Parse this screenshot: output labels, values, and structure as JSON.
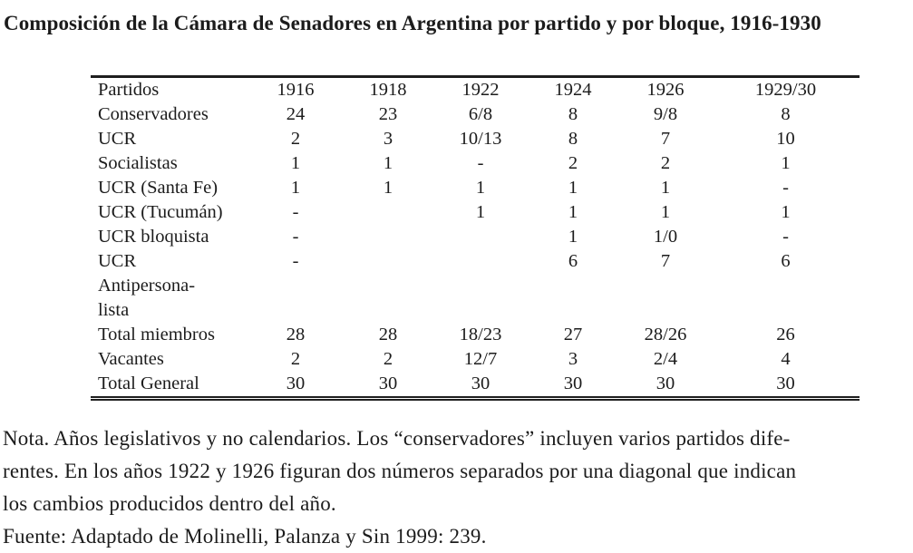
{
  "page": {
    "title": "Composición de la Cámara de Senadores en Argentina por partido y por bloque, 1916-1930"
  },
  "table": {
    "columns": [
      "Partidos",
      "1916",
      "1918",
      "1922",
      "1924",
      "1926",
      "1929/30"
    ],
    "rows": [
      {
        "label": "Conservadores",
        "values": [
          "24",
          "23",
          "6/8",
          "8",
          "9/8",
          "8"
        ]
      },
      {
        "label": "UCR",
        "values": [
          "2",
          "3",
          "10/13",
          "8",
          "7",
          "10"
        ]
      },
      {
        "label": "Socialistas",
        "values": [
          "1",
          "1",
          "-",
          "2",
          "2",
          "1"
        ]
      },
      {
        "label": "UCR (Santa Fe)",
        "values": [
          "1",
          "1",
          "1",
          "1",
          "1",
          "-"
        ]
      },
      {
        "label": "UCR (Tucumán)",
        "values": [
          "-",
          "",
          "1",
          "1",
          "1",
          "1"
        ]
      },
      {
        "label": "UCR bloquista",
        "values": [
          "-",
          "",
          "",
          "1",
          "1/0",
          "-"
        ]
      },
      {
        "label": "UCR\nAntipersona-\nlista",
        "values": [
          "-",
          "",
          "",
          "6",
          "7",
          "6"
        ]
      },
      {
        "label": "Total miembros",
        "values": [
          "28",
          "28",
          "18/23",
          "27",
          "28/26",
          "26"
        ]
      },
      {
        "label": "Vacantes",
        "values": [
          "2",
          "2",
          "12/7",
          "3",
          "2/4",
          "4"
        ]
      },
      {
        "label": "Total General",
        "values": [
          "30",
          "30",
          "30",
          "30",
          "30",
          "30"
        ]
      }
    ]
  },
  "notes": {
    "nota_lines": [
      "Nota. Años legislativos y no calendarios. Los “conservadores” incluyen varios partidos dife-",
      "rentes. En los años 1922 y 1926 figuran dos números separados por una diagonal que indican",
      "los cambios producidos dentro del año."
    ],
    "fuente": "Fuente: Adaptado de Molinelli, Palanza y Sin 1999: 239."
  }
}
